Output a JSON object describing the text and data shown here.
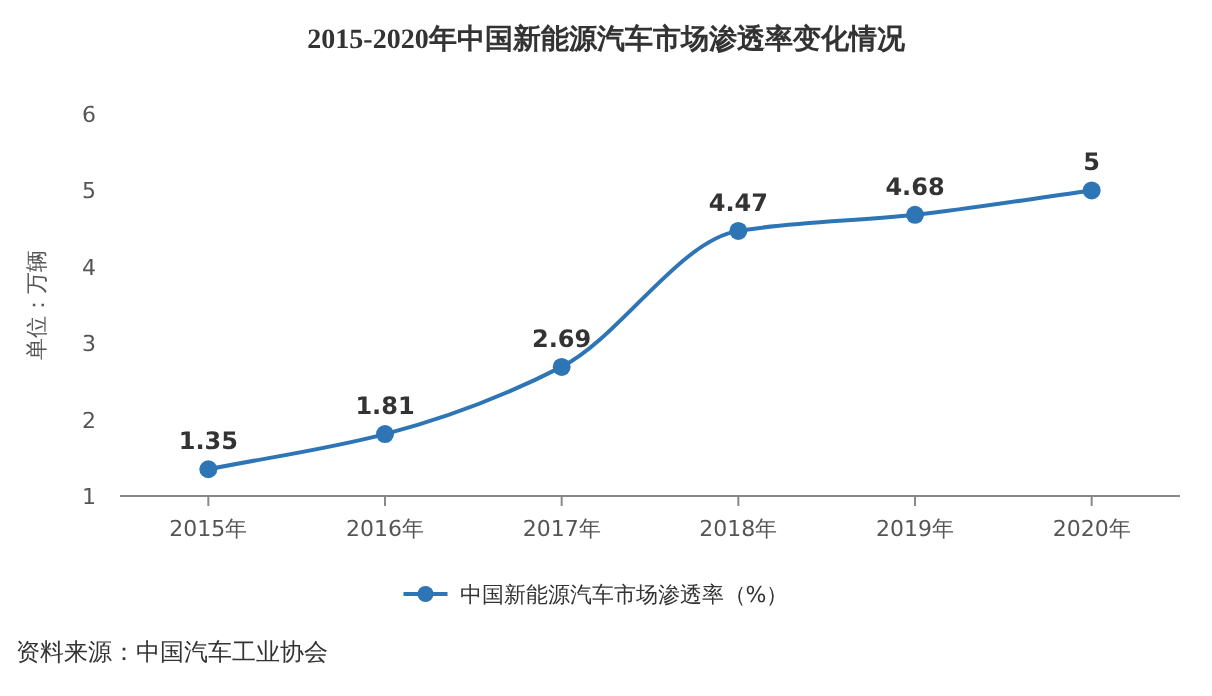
{
  "chart_data": {
    "type": "line",
    "title": "2015-2020年中国新能源汽车市场渗透率变化情况",
    "ylabel": "单位：万辆",
    "categories": [
      "2015年",
      "2016年",
      "2017年",
      "2018年",
      "2019年",
      "2020年"
    ],
    "series": [
      {
        "name": "中国新能源汽车市场渗透率（%）",
        "color": "#2e75b6",
        "values": [
          1.35,
          1.81,
          2.69,
          4.47,
          4.68,
          5
        ]
      }
    ],
    "ylim": [
      1,
      6
    ],
    "yticks": [
      1,
      2,
      3,
      4,
      5,
      6
    ],
    "grid": false,
    "legend": "bottom",
    "marker": "circle",
    "line_style": "solid",
    "data_labels": true,
    "annotations": [
      "资料来源：中国汽车工业协会"
    ]
  }
}
